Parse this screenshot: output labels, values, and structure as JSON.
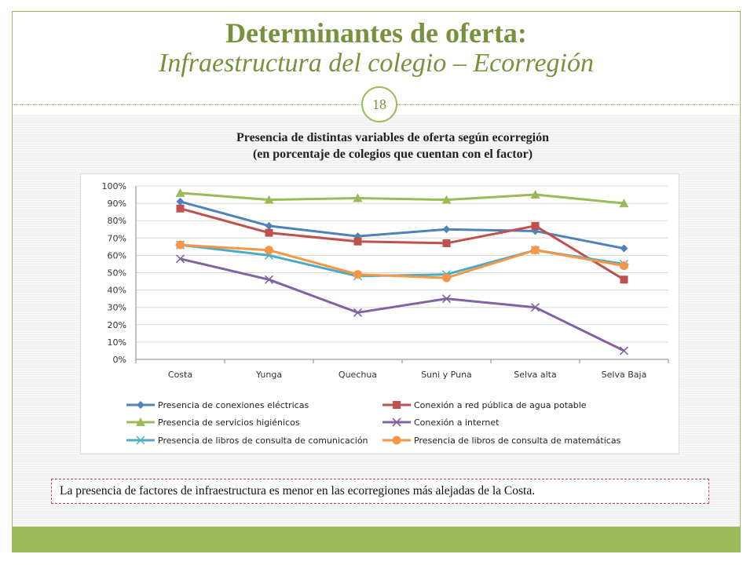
{
  "slide": {
    "title_line1": "Determinantes de oferta:",
    "title_line2": "Infraestructura del colegio – Ecorregión",
    "page_number": "18",
    "note": "La presencia de factores de infraestructura es menor en las ecorregiones más alejadas de la Costa.",
    "accent_color": "#9bbb59",
    "title_color": "#76923c"
  },
  "chart_heading": {
    "line1": "Presencia de distintas variables de oferta según ecorregión",
    "line2": "(en porcentaje de colegios que cuentan con el factor)"
  },
  "chart_data": {
    "type": "line",
    "title": "Presencia de distintas variables de oferta según ecorregión (en porcentaje de colegios que cuentan con el factor)",
    "categories": [
      "Costa",
      "Yunga",
      "Quechua",
      "Suni y Puna",
      "Selva alta",
      "Selva Baja"
    ],
    "y_ticks": [
      "0%",
      "10%",
      "20%",
      "30%",
      "40%",
      "50%",
      "60%",
      "70%",
      "80%",
      "90%",
      "100%"
    ],
    "ylim": [
      0,
      100
    ],
    "y_unit": "%",
    "grid": true,
    "legend_position": "bottom",
    "series": [
      {
        "name": "Presencia de conexiones eléctricas",
        "values": [
          91,
          77,
          71,
          75,
          74,
          64
        ],
        "color": "#4f81bd",
        "marker": "diamond"
      },
      {
        "name": "Conexión a red pública de agua potable",
        "values": [
          87,
          73,
          68,
          67,
          77,
          46
        ],
        "color": "#c0504d",
        "marker": "square"
      },
      {
        "name": "Presencia de servicios higiénicos",
        "values": [
          96,
          92,
          93,
          92,
          95,
          90
        ],
        "color": "#9bbb59",
        "marker": "triangle"
      },
      {
        "name": "Conexión a internet",
        "values": [
          58,
          46,
          27,
          35,
          30,
          5
        ],
        "color": "#8064a2",
        "marker": "x"
      },
      {
        "name": "Presencia de libros de consulta de comunicación",
        "values": [
          66,
          60,
          48,
          49,
          63,
          55
        ],
        "color": "#4bacc6",
        "marker": "star"
      },
      {
        "name": "Presencia de libros de consulta de matemáticas",
        "values": [
          66,
          63,
          49,
          47,
          63,
          54
        ],
        "color": "#f79646",
        "marker": "circle"
      }
    ]
  }
}
